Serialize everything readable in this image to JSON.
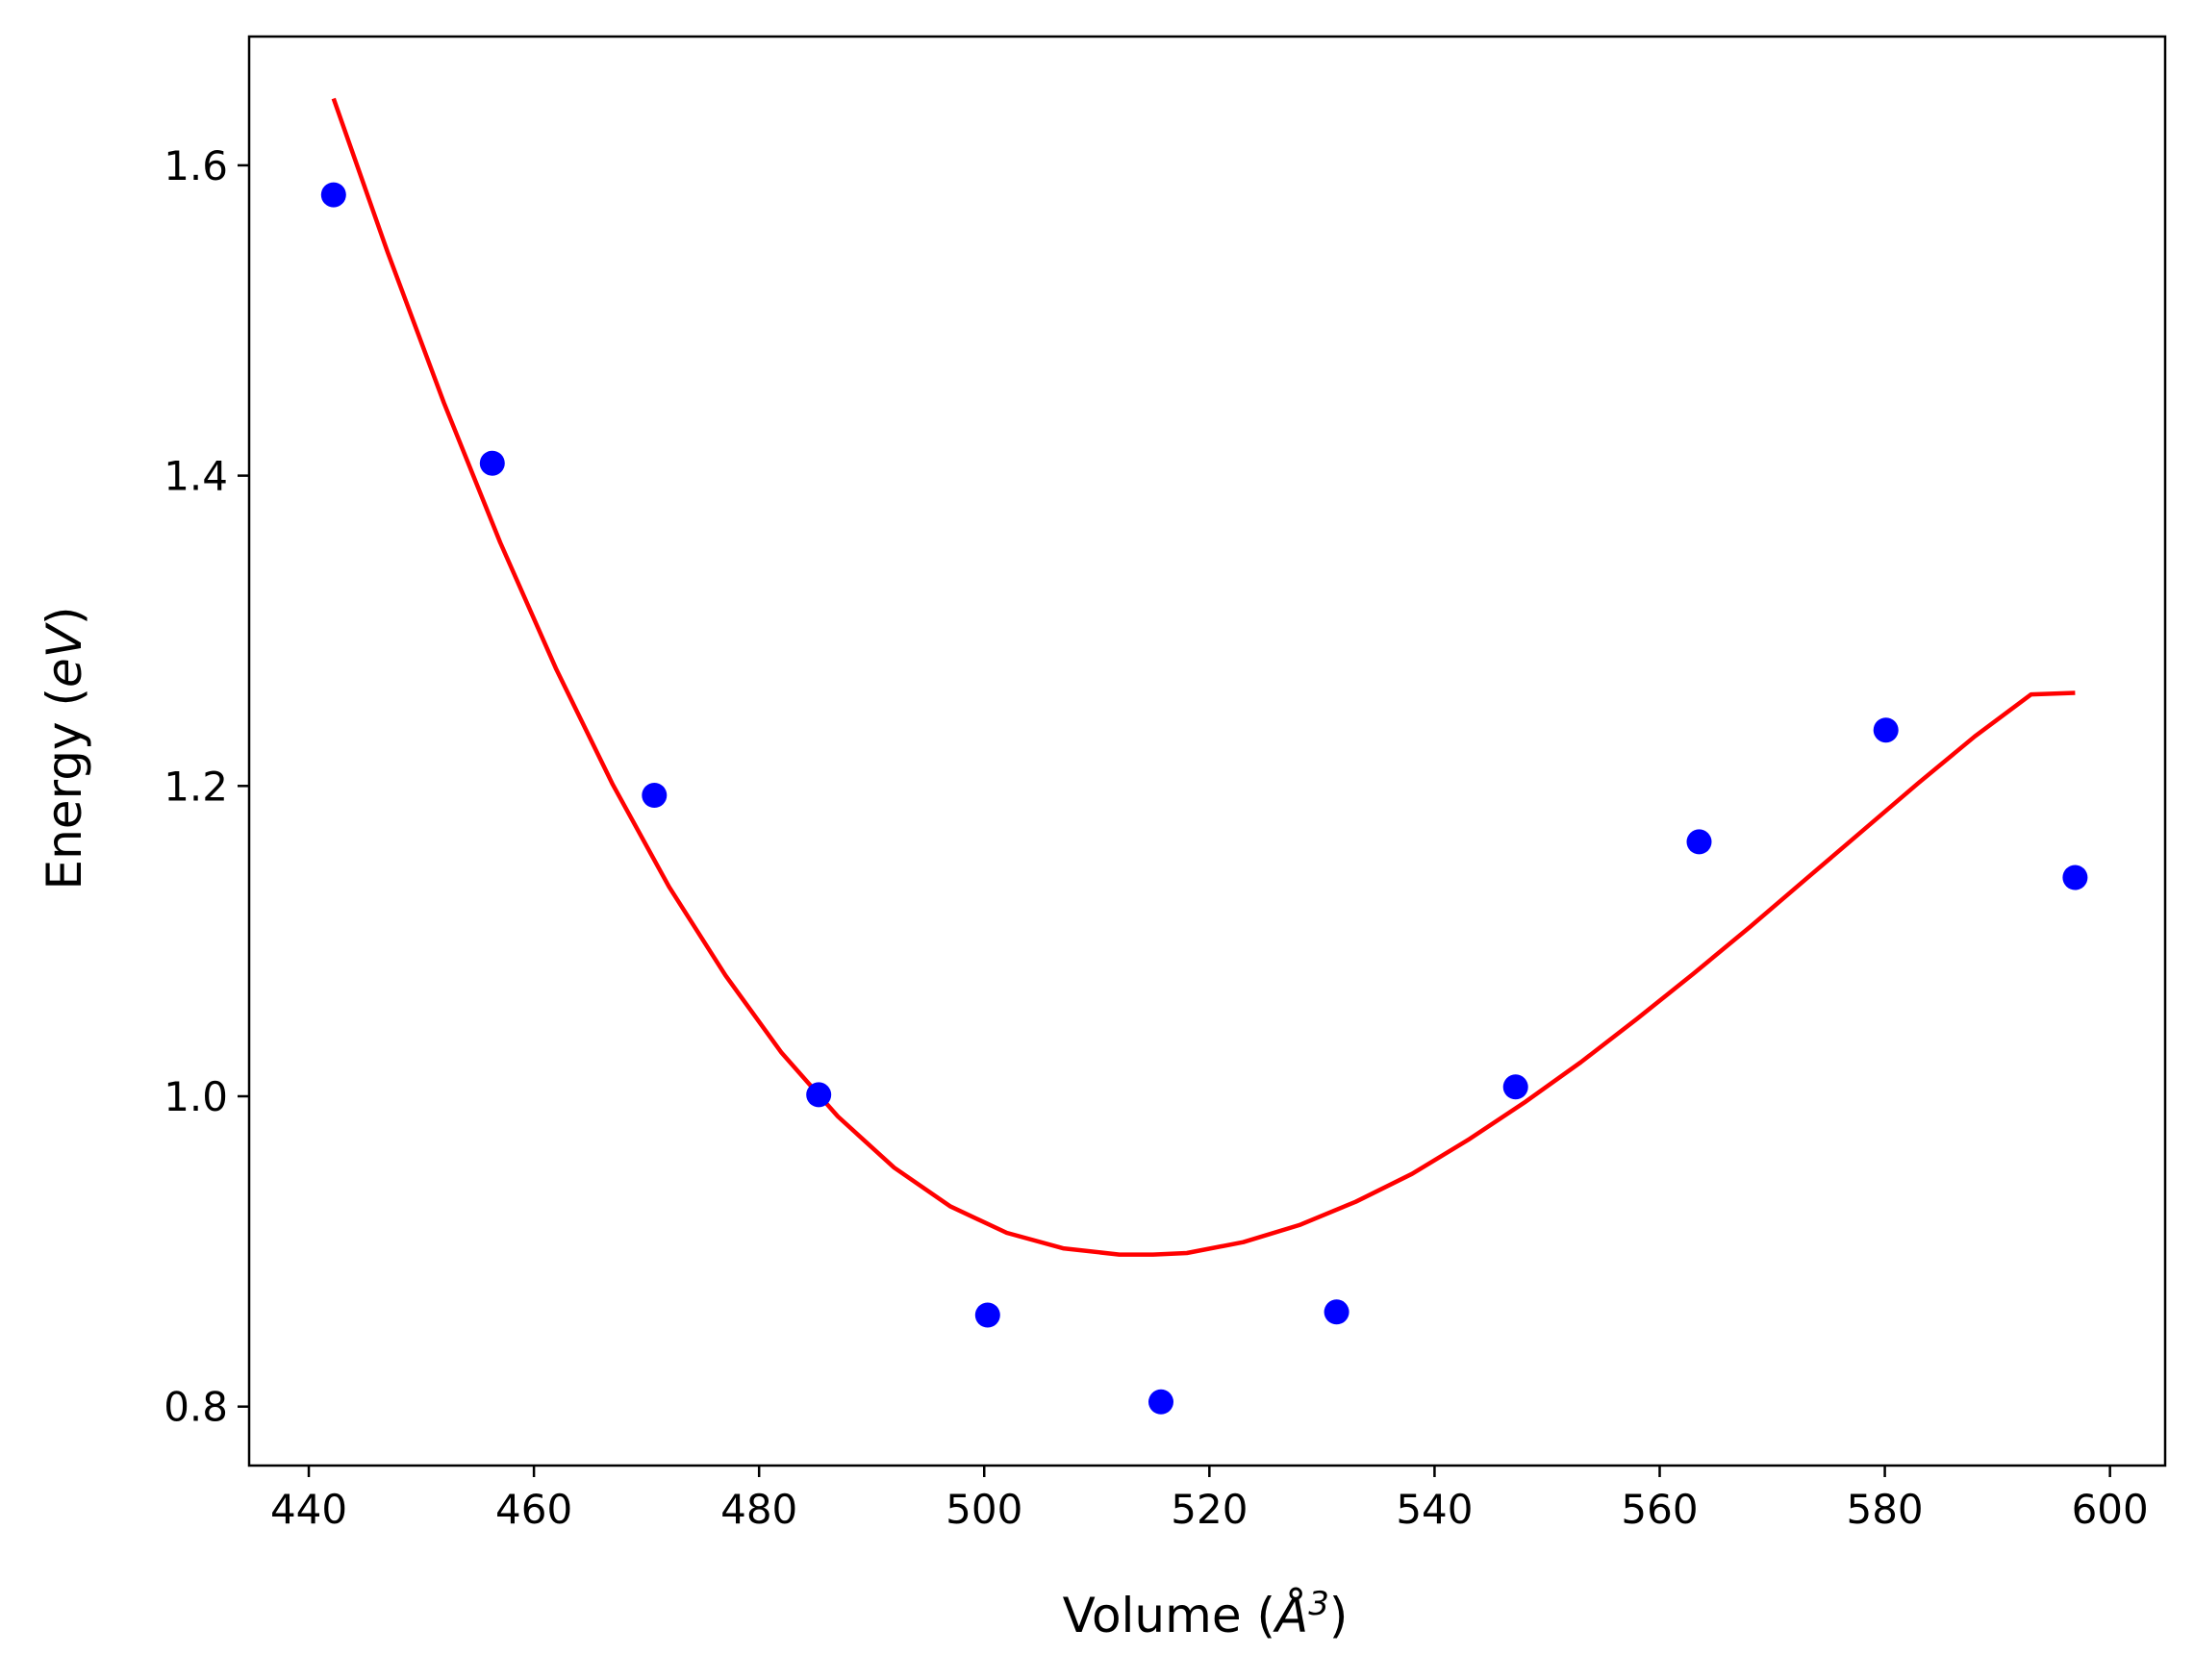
{
  "chart_data": {
    "type": "scatter",
    "xlabel": {
      "prefix": "Volume (",
      "symbol": "Å",
      "superscript": "3",
      "suffix": ")"
    },
    "ylabel": {
      "prefix": "Energy (",
      "unit": "eV",
      "suffix": ")"
    },
    "xlim": [
      434.7,
      604.9
    ],
    "ylim": [
      0.762,
      1.683
    ],
    "xticks": [
      440,
      460,
      480,
      500,
      520,
      540,
      560,
      580,
      600
    ],
    "yticks": [
      0.8,
      1.0,
      1.2,
      1.4,
      1.6
    ],
    "grid": false,
    "legend": "none",
    "series": [
      {
        "kind": "points",
        "color": "#0000ff",
        "x": [
          442.2,
          456.3,
          470.7,
          485.3,
          500.3,
          515.7,
          531.3,
          547.2,
          563.5,
          580.1,
          596.9
        ],
        "y": [
          1.581,
          1.408,
          1.194,
          1.001,
          0.859,
          0.803,
          0.861,
          1.006,
          1.164,
          1.236,
          1.141
        ]
      },
      {
        "kind": "fit-line",
        "color": "#ff0000",
        "x": [
          442.2,
          447,
          452,
          457,
          462,
          467,
          472,
          477,
          482,
          487,
          492,
          497,
          502,
          507,
          512,
          515,
          518,
          523,
          528,
          533,
          538,
          543,
          548,
          553,
          558,
          563,
          568,
          573,
          578,
          583,
          588,
          593,
          596.9
        ],
        "y": [
          1.643,
          1.544,
          1.447,
          1.357,
          1.275,
          1.201,
          1.135,
          1.078,
          1.028,
          0.987,
          0.954,
          0.929,
          0.912,
          0.902,
          0.898,
          0.898,
          0.899,
          0.906,
          0.917,
          0.932,
          0.95,
          0.972,
          0.996,
          1.022,
          1.05,
          1.079,
          1.109,
          1.14,
          1.171,
          1.202,
          1.232,
          1.259,
          1.26
        ]
      }
    ]
  }
}
